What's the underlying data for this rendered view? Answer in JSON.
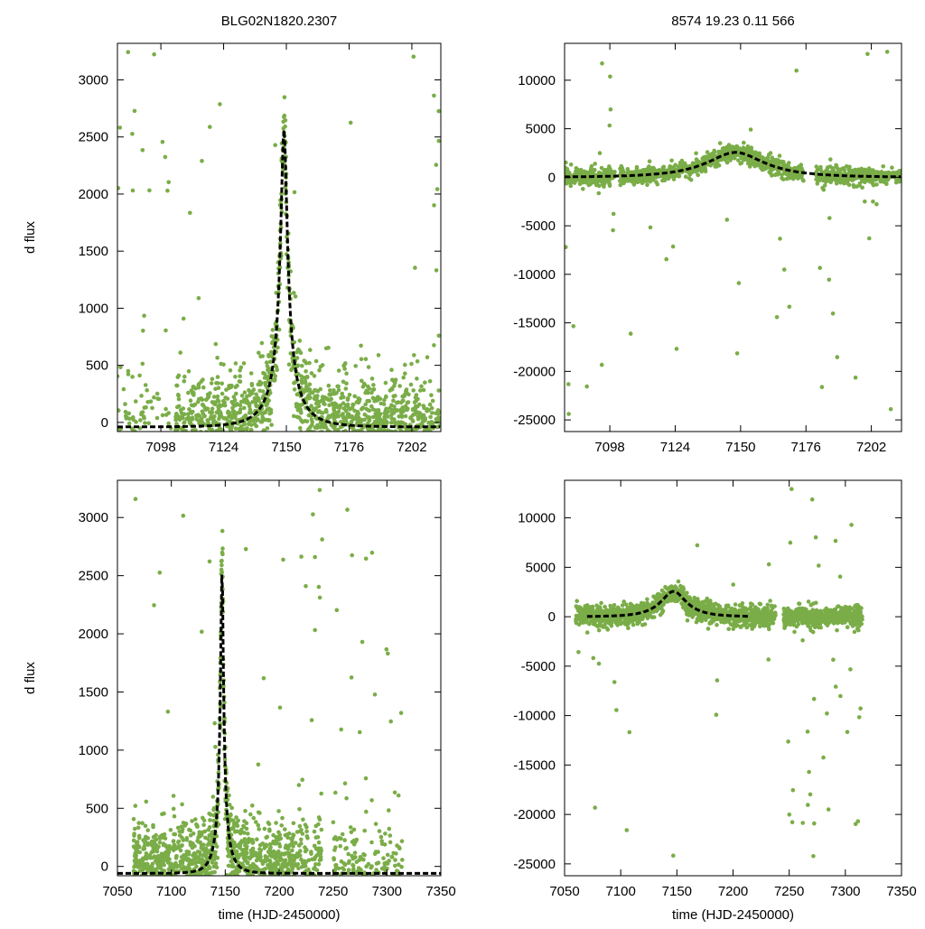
{
  "chart_data": [
    {
      "id": "top-left",
      "type": "scatter",
      "title": "BLG02N1820.2307",
      "xlabel": "",
      "ylabel": "d flux",
      "xlim": [
        7080,
        7214
      ],
      "ylim": [
        -80,
        3320
      ],
      "xticks": [
        7098,
        7124,
        7150,
        7176,
        7202
      ],
      "yticks": [
        0,
        500,
        1000,
        1500,
        2000,
        2500,
        3000
      ],
      "model": {
        "type": "pspl",
        "t0": 7149,
        "peak": 2560,
        "u0": 0.1,
        "tE": 13,
        "base": -40,
        "style": "dashed",
        "color": "#000000"
      },
      "series": [
        {
          "name": "data",
          "color": "#7aad48",
          "segments": [
            [
              7080,
              7096,
              0.25
            ],
            [
              7096,
              7103,
              0.05
            ],
            [
              7104,
              7211,
              1.0
            ],
            [
              7211,
              7214,
              0.4
            ]
          ],
          "count": 1800,
          "scatter": 180,
          "outliers": 40,
          "seed": 11
        }
      ]
    },
    {
      "id": "top-right",
      "type": "scatter",
      "title": "8574  19.23  0.11  566",
      "xlabel": "",
      "ylabel": "",
      "xlim": [
        7080,
        7214
      ],
      "ylim": [
        -26200,
        13800
      ],
      "xticks": [
        7098,
        7124,
        7150,
        7176,
        7202
      ],
      "yticks": [
        -25000,
        -20000,
        -15000,
        -10000,
        -5000,
        0,
        5000,
        10000
      ],
      "model": {
        "type": "pspl",
        "t0": 7148,
        "peak": 2560,
        "u0": 0.5,
        "tE": 24,
        "base": 0,
        "style": "dashed",
        "color": "#000000"
      },
      "series": [
        {
          "name": "data",
          "color": "#7aad48",
          "segments": [
            [
              7080,
              7100,
              1.0
            ],
            [
              7102,
              7175,
              1.0
            ],
            [
              7180,
              7214,
              0.9
            ]
          ],
          "count": 1500,
          "scatter": 350,
          "outliers": 45,
          "seed": 23
        }
      ]
    },
    {
      "id": "bottom-left",
      "type": "scatter",
      "title": "",
      "xlabel": "time (HJD-2450000)",
      "ylabel": "d flux",
      "xlim": [
        7050,
        7350
      ],
      "ylim": [
        -80,
        3320
      ],
      "xticks": [
        7050,
        7100,
        7150,
        7200,
        7250,
        7300,
        7350
      ],
      "yticks": [
        0,
        500,
        1000,
        1500,
        2000,
        2500,
        3000
      ],
      "model": {
        "type": "pspl",
        "t0": 7147,
        "peak": 2560,
        "u0": 0.1,
        "tE": 13,
        "base": -60,
        "style": "dashed",
        "color": "#000000"
      },
      "series": [
        {
          "name": "data",
          "color": "#7aad48",
          "segments": [
            [
              7065,
              7215,
              1.0
            ],
            [
              7215,
              7240,
              0.5
            ],
            [
              7250,
              7315,
              0.35
            ]
          ],
          "count": 2000,
          "scatter": 170,
          "outliers": 60,
          "seed": 37
        }
      ]
    },
    {
      "id": "bottom-right",
      "type": "scatter",
      "title": "",
      "xlabel": "time (HJD-2450000)",
      "ylabel": "",
      "xlim": [
        7050,
        7350
      ],
      "ylim": [
        -26200,
        13800
      ],
      "xticks": [
        7050,
        7100,
        7150,
        7200,
        7250,
        7300,
        7350
      ],
      "yticks": [
        -25000,
        -20000,
        -15000,
        -10000,
        -5000,
        0,
        5000,
        10000
      ],
      "model": {
        "type": "pspl",
        "t0": 7147,
        "peak": 2560,
        "u0": 0.5,
        "tE": 24,
        "base": 0,
        "style": "dashed",
        "color": "#000000",
        "xrange": [
          7070,
          7215
        ]
      },
      "series": [
        {
          "name": "data",
          "color": "#7aad48",
          "segments": [
            [
              7060,
              7238,
              1.0
            ],
            [
              7245,
              7315,
              1.0
            ]
          ],
          "count": 1800,
          "scatter": 420,
          "outliers": 50,
          "seed": 53
        }
      ]
    }
  ]
}
